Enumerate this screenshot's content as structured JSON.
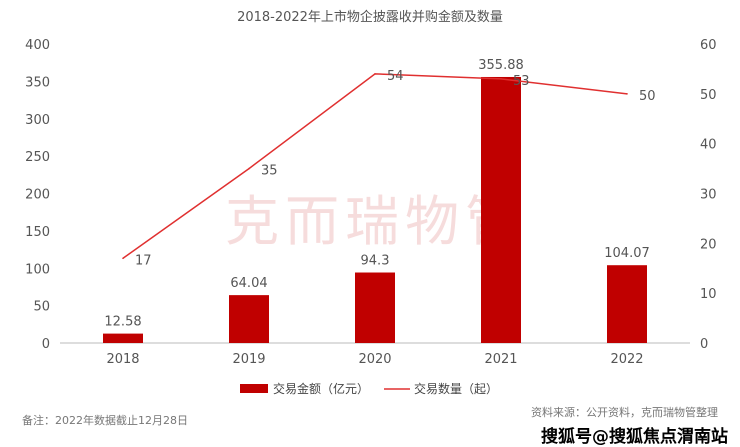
{
  "chart_data": {
    "type": "bar+line",
    "title": "2018-2022年上市物企披露收并购金额及数量",
    "categories": [
      "2018",
      "2019",
      "2020",
      "2021",
      "2022"
    ],
    "series": [
      {
        "name": "交易金额（亿元）",
        "type": "bar",
        "axis": "left",
        "color": "#C00000",
        "values": [
          12.58,
          64.04,
          94.3,
          355.88,
          104.07
        ],
        "labels": [
          "12.58",
          "64.04",
          "94.3",
          "355.88",
          "104.07"
        ]
      },
      {
        "name": "交易数量（起）",
        "type": "line",
        "axis": "right",
        "color": "#E03030",
        "values": [
          17,
          35,
          54,
          53,
          50
        ],
        "labels": [
          "17",
          "35",
          "54",
          "53",
          "50"
        ]
      }
    ],
    "left_axis": {
      "range": [
        0,
        400
      ],
      "ticks": [
        "0",
        "50",
        "100",
        "150",
        "200",
        "250",
        "300",
        "350",
        "400"
      ]
    },
    "right_axis": {
      "range": [
        0,
        60
      ],
      "ticks": [
        "0",
        "10",
        "20",
        "30",
        "40",
        "50",
        "60"
      ]
    },
    "legend_position": "bottom",
    "grid": false
  },
  "watermark_logo": "克而瑞物管",
  "footer": {
    "note": "备注：2022年数据截止12月28日",
    "source": "资料来源：公开资料，克而瑞物管整理",
    "overlay_watermark": "搜狐号@搜狐焦点渭南站"
  }
}
